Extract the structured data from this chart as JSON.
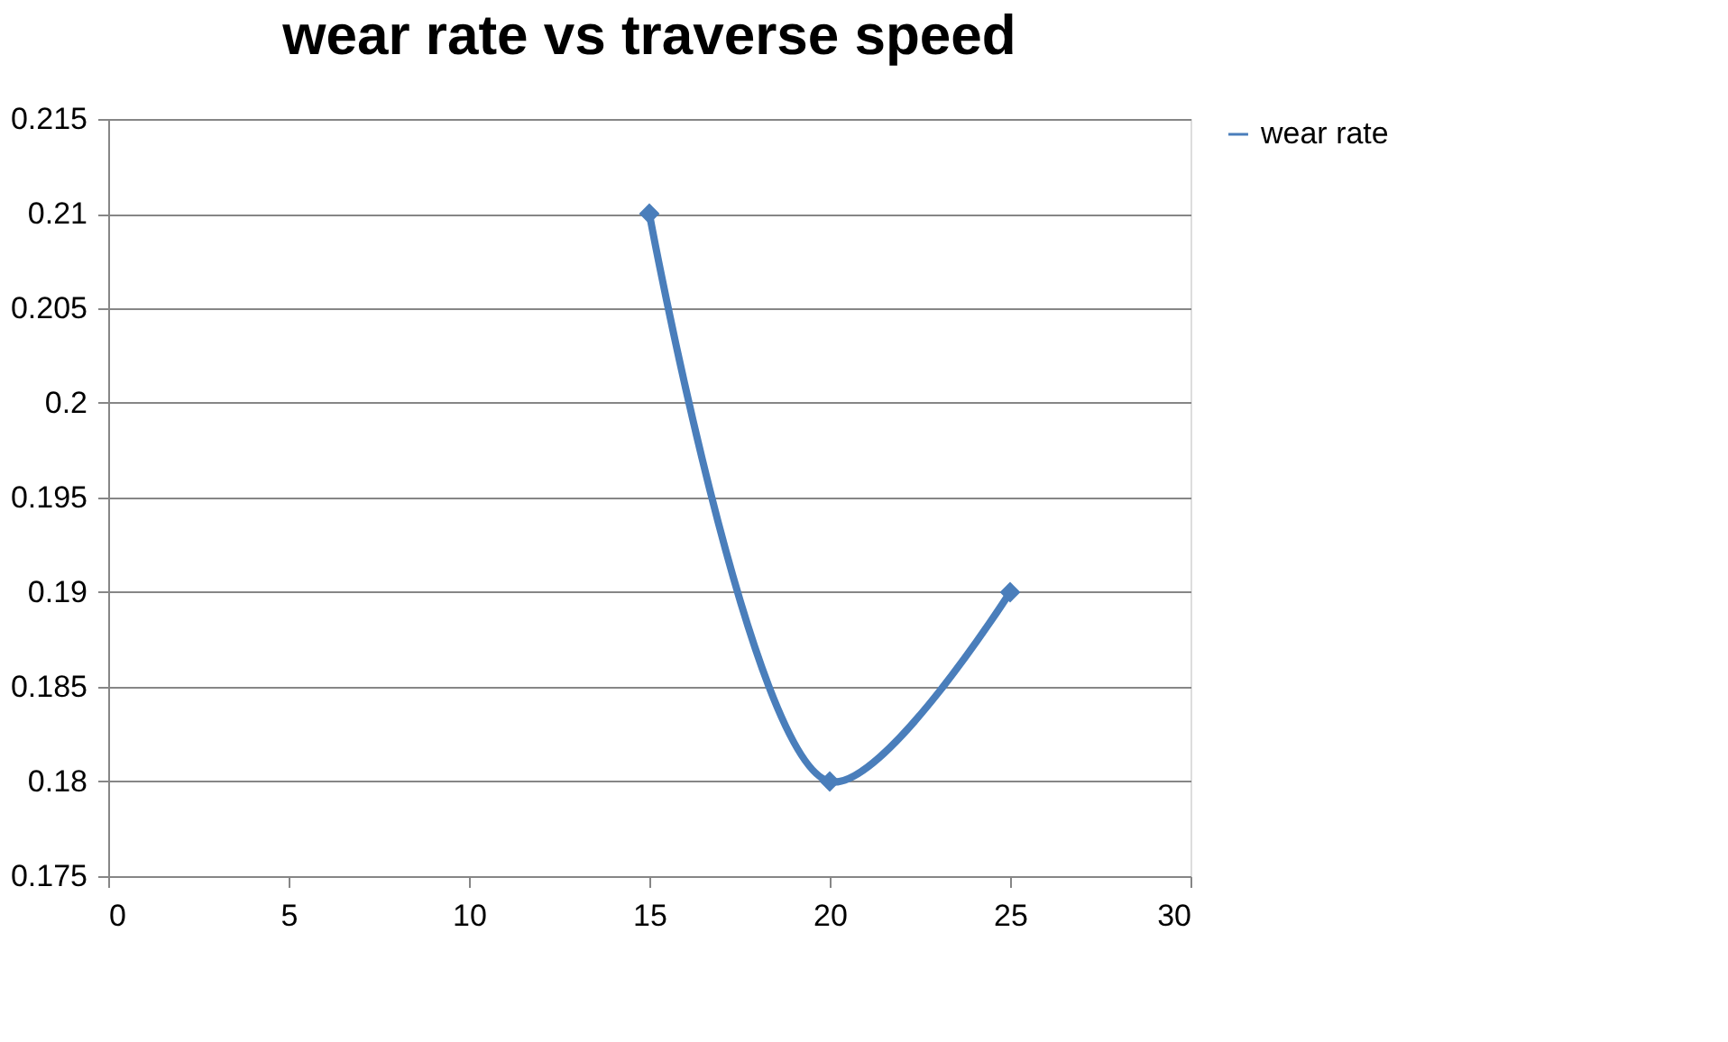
{
  "chart_data": {
    "type": "line",
    "title": "wear rate vs traverse speed",
    "x": [
      15,
      20,
      25
    ],
    "series": [
      {
        "name": "wear rate",
        "color": "#4a7ebb",
        "values": [
          0.21,
          0.18,
          0.19
        ]
      }
    ],
    "xlim": [
      0,
      30
    ],
    "xticks": [
      0,
      5,
      10,
      15,
      20,
      25,
      30
    ],
    "ylim": [
      0.175,
      0.215
    ],
    "yticks": [
      0.175,
      0.18,
      0.185,
      0.19,
      0.195,
      0.2,
      0.205,
      0.21,
      0.215
    ],
    "grid": "y",
    "legend": "right",
    "marker": "diamond",
    "line_style": "solid"
  }
}
